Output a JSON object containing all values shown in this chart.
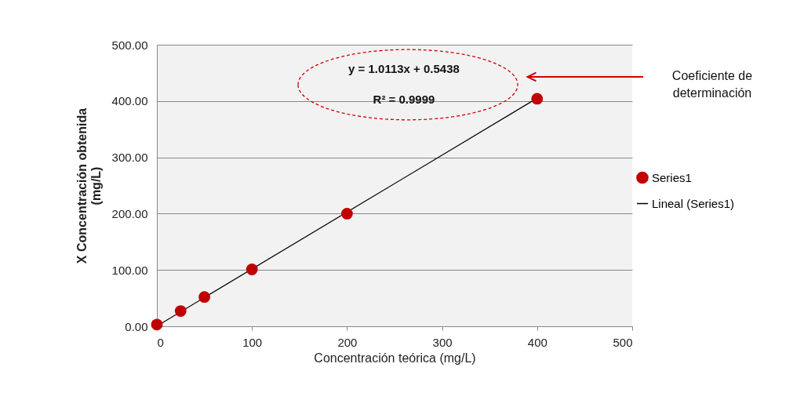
{
  "chart_data": {
    "type": "scatter",
    "xlabel": "Concentración teórica (mg/L)",
    "ylabel": "X Concentración obtenida\n(mg/L)",
    "series": [
      {
        "name": "Series1",
        "color": "#c00000",
        "x": [
          0,
          25,
          50,
          100,
          200,
          400
        ],
        "values": [
          3,
          27,
          52,
          101,
          200,
          404
        ]
      },
      {
        "name": "Lineal (Series1)",
        "type": "line",
        "marker": "none",
        "color": "#000000",
        "x": [
          0,
          400
        ],
        "values": [
          0.5,
          405.1
        ]
      }
    ],
    "xlim": [
      0,
      500
    ],
    "xticks": [
      0,
      100,
      200,
      300,
      400,
      500
    ],
    "ylim": [
      0,
      500
    ],
    "yticks": [
      {
        "value": 0,
        "label": "0.00"
      },
      {
        "value": 100,
        "label": "100.00"
      },
      {
        "value": 200,
        "label": "200.00"
      },
      {
        "value": 300,
        "label": "300.00"
      },
      {
        "value": 400,
        "label": "400.00"
      },
      {
        "value": 500,
        "label": "500.00"
      }
    ],
    "annotations": [
      "y = 1.0113x + 0.5438",
      "R² = 0.9999",
      "Coeficiente de\ndeterminación"
    ],
    "grid": "y",
    "legend": "right",
    "marker": "circle",
    "line_style": "solid"
  }
}
